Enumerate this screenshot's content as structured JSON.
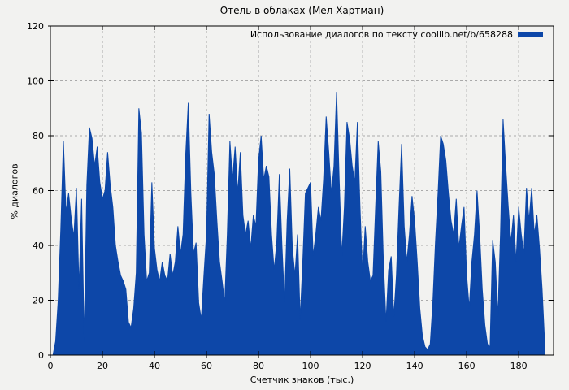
{
  "title": "Отель в облаках (Мел Хартман)",
  "legend": {
    "label": "Использование диалогов по тексту coollib.net/b/658288"
  },
  "axes": {
    "x_label": "Счетчик знаков (тыс.)",
    "y_label": "% диалогов"
  },
  "colors": {
    "series": "#0d47a8",
    "background": "#f2f2f0",
    "grid": "#aaaaaa",
    "border": "#000000"
  },
  "chart_data": {
    "type": "area",
    "title": "Отель в облаках (Мел Хартман)",
    "xlabel": "Счетчик знаков (тыс.)",
    "ylabel": "% диалогов",
    "xlim": [
      0,
      193.4
    ],
    "ylim": [
      0,
      120
    ],
    "x_ticks": [
      0,
      20,
      40,
      60,
      80,
      100,
      120,
      140,
      160,
      180
    ],
    "y_ticks": [
      0,
      20,
      40,
      60,
      80,
      100,
      120
    ],
    "grid": true,
    "grid_style": "dashed",
    "legend_position": "top-right",
    "series_color": "#0d47a8",
    "x_start": 1,
    "x_step": 1,
    "series": [
      {
        "name": "Использование диалогов по тексту coollib.net/b/658288",
        "values": [
          0,
          5,
          20,
          46,
          78,
          52,
          59,
          50,
          43,
          61,
          24,
          57,
          5,
          62,
          83,
          79,
          69,
          76,
          63,
          57,
          60,
          74,
          62,
          54,
          40,
          34,
          29,
          27,
          24,
          12,
          10,
          17,
          30,
          90,
          81,
          44,
          27,
          30,
          63,
          39,
          31,
          27,
          34,
          29,
          27,
          37,
          29,
          34,
          47,
          37,
          44,
          73,
          92,
          59,
          37,
          41,
          19,
          13,
          29,
          44,
          88,
          74,
          66,
          49,
          34,
          27,
          19,
          44,
          78,
          64,
          76,
          59,
          74,
          51,
          44,
          49,
          39,
          51,
          47,
          71,
          80,
          64,
          69,
          65,
          44,
          31,
          41,
          66,
          40,
          19,
          49,
          68,
          39,
          29,
          44,
          13,
          34,
          59,
          61,
          63,
          36,
          44,
          54,
          49,
          64,
          87,
          74,
          59,
          69,
          96,
          64,
          36,
          54,
          85,
          79,
          69,
          63,
          85,
          54,
          29,
          47,
          34,
          27,
          29,
          54,
          78,
          67,
          34,
          12,
          31,
          36,
          14,
          29,
          54,
          77,
          47,
          34,
          44,
          58,
          49,
          34,
          17,
          7,
          3,
          2,
          4,
          19,
          41,
          59,
          80,
          77,
          71,
          59,
          49,
          44,
          57,
          39,
          47,
          54,
          29,
          17,
          34,
          44,
          60,
          44,
          24,
          11,
          4,
          3,
          42,
          34,
          14,
          44,
          86,
          69,
          54,
          41,
          51,
          34,
          54,
          44,
          37,
          61,
          49,
          61,
          44,
          51,
          39,
          24,
          4
        ]
      }
    ]
  }
}
